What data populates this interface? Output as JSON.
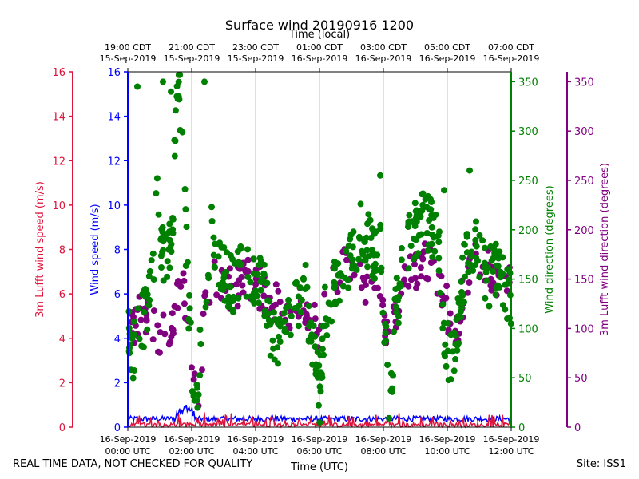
{
  "chart_data": {
    "type": "scatter",
    "title": "Surface wind 20190916 1200",
    "top_axis_label": "Time (local)",
    "bottom_axis_label": "Time (UTC)",
    "footer_left": "REAL TIME DATA, NOT CHECKED FOR QUALITY",
    "footer_right": "Site: ISS1",
    "x_range_hours": [
      0,
      12
    ],
    "bottom_ticks": [
      {
        "h": 0,
        "line1": "16-Sep-2019",
        "line2": "00:00 UTC"
      },
      {
        "h": 2,
        "line1": "16-Sep-2019",
        "line2": "02:00 UTC"
      },
      {
        "h": 4,
        "line1": "16-Sep-2019",
        "line2": "04:00 UTC"
      },
      {
        "h": 6,
        "line1": "16-Sep-2019",
        "line2": "06:00 UTC"
      },
      {
        "h": 8,
        "line1": "16-Sep-2019",
        "line2": "08:00 UTC"
      },
      {
        "h": 10,
        "line1": "16-Sep-2019",
        "line2": "10:00 UTC"
      },
      {
        "h": 12,
        "line1": "16-Sep-2019",
        "line2": "12:00 UTC"
      }
    ],
    "top_ticks": [
      {
        "h": 0,
        "line1": "19:00 CDT",
        "line2": "15-Sep-2019"
      },
      {
        "h": 2,
        "line1": "21:00 CDT",
        "line2": "15-Sep-2019"
      },
      {
        "h": 4,
        "line1": "23:00 CDT",
        "line2": "15-Sep-2019"
      },
      {
        "h": 6,
        "line1": "01:00 CDT",
        "line2": "16-Sep-2019"
      },
      {
        "h": 8,
        "line1": "03:00 CDT",
        "line2": "16-Sep-2019"
      },
      {
        "h": 10,
        "line1": "05:00 CDT",
        "line2": "16-Sep-2019"
      },
      {
        "h": 12,
        "line1": "07:00 CDT",
        "line2": "16-Sep-2019"
      }
    ],
    "axes": {
      "lufft_speed": {
        "label": "3m Lufft wind speed (m/s)",
        "range": [
          0,
          16
        ],
        "ticks": [
          0,
          2,
          4,
          6,
          8,
          10,
          12,
          14,
          16
        ],
        "color": "#dc143c"
      },
      "wind_speed": {
        "label": "Wind speed (m/s)",
        "range": [
          0,
          16
        ],
        "ticks": [
          0,
          2,
          4,
          6,
          8,
          10,
          12,
          14,
          16
        ],
        "color": "#0000ff"
      },
      "wind_dir": {
        "label": "Wind direction (degrees)",
        "range": [
          0,
          360
        ],
        "ticks": [
          0,
          50,
          100,
          150,
          200,
          250,
          300,
          350
        ],
        "color": "#008000"
      },
      "lufft_dir": {
        "label": "3m Lufft wind direction (degrees)",
        "range": [
          0,
          360
        ],
        "ticks": [
          0,
          50,
          100,
          150,
          200,
          250,
          300,
          350
        ],
        "color": "#800080"
      }
    },
    "series": [
      {
        "name": "Wind speed",
        "axis": "wind_speed",
        "kind": "line",
        "color": "#0000ff"
      },
      {
        "name": "3m Lufft wind speed",
        "axis": "lufft_speed",
        "kind": "line",
        "color": "#dc143c"
      },
      {
        "name": "3m Lufft wind direction",
        "axis": "lufft_dir",
        "kind": "scatter",
        "color": "#800080"
      },
      {
        "name": "Wind direction",
        "axis": "wind_dir",
        "kind": "scatter",
        "color": "#008000"
      }
    ],
    "wind_dir_anchors": [
      [
        0.0,
        100
      ],
      [
        0.15,
        75
      ],
      [
        0.35,
        95
      ],
      [
        0.6,
        120
      ],
      [
        0.8,
        170
      ],
      [
        0.95,
        250
      ],
      [
        1.05,
        185
      ],
      [
        1.2,
        160
      ],
      [
        1.4,
        200
      ],
      [
        1.5,
        330
      ],
      [
        1.6,
        340
      ],
      [
        1.7,
        300
      ],
      [
        1.8,
        210
      ],
      [
        1.9,
        120
      ],
      [
        2.0,
        65
      ],
      [
        2.1,
        20
      ],
      [
        2.2,
        55
      ],
      [
        2.3,
        80
      ],
      [
        2.5,
        140
      ],
      [
        2.6,
        210
      ],
      [
        2.75,
        170
      ],
      [
        3.0,
        160
      ],
      [
        3.3,
        140
      ],
      [
        3.6,
        160
      ],
      [
        3.8,
        150
      ],
      [
        4.0,
        150
      ],
      [
        4.3,
        140
      ],
      [
        4.5,
        90
      ],
      [
        4.8,
        85
      ],
      [
        5.0,
        100
      ],
      [
        5.2,
        115
      ],
      [
        5.5,
        130
      ],
      [
        5.6,
        160
      ],
      [
        5.7,
        90
      ],
      [
        5.9,
        70
      ],
      [
        6.0,
        25
      ],
      [
        6.15,
        110
      ],
      [
        6.4,
        135
      ],
      [
        6.7,
        160
      ],
      [
        7.0,
        175
      ],
      [
        7.3,
        200
      ],
      [
        7.6,
        185
      ],
      [
        7.8,
        175
      ],
      [
        7.9,
        200
      ],
      [
        8.0,
        110
      ],
      [
        8.1,
        70
      ],
      [
        8.2,
        30
      ],
      [
        8.4,
        120
      ],
      [
        8.7,
        180
      ],
      [
        9.0,
        200
      ],
      [
        9.3,
        210
      ],
      [
        9.6,
        195
      ],
      [
        9.8,
        160
      ],
      [
        9.9,
        100
      ],
      [
        10.0,
        80
      ],
      [
        10.2,
        60
      ],
      [
        10.4,
        130
      ],
      [
        10.7,
        190
      ],
      [
        11.0,
        175
      ],
      [
        11.3,
        150
      ],
      [
        11.5,
        165
      ],
      [
        11.8,
        145
      ],
      [
        12.0,
        130
      ]
    ],
    "lufft_dir_anchors": [
      [
        0.1,
        95
      ],
      [
        0.4,
        115
      ],
      [
        0.8,
        105
      ],
      [
        1.0,
        90
      ],
      [
        1.3,
        95
      ],
      [
        1.5,
        120
      ],
      [
        1.7,
        155
      ],
      [
        1.9,
        100
      ],
      [
        2.0,
        60
      ],
      [
        2.2,
        20
      ],
      [
        2.4,
        110
      ],
      [
        2.7,
        150
      ],
      [
        3.0,
        145
      ],
      [
        3.3,
        140
      ],
      [
        3.6,
        145
      ],
      [
        3.9,
        150
      ],
      [
        4.2,
        140
      ],
      [
        4.5,
        130
      ],
      [
        4.8,
        115
      ],
      [
        5.0,
        120
      ],
      [
        5.3,
        130
      ],
      [
        5.6,
        110
      ],
      [
        5.9,
        100
      ],
      [
        6.2,
        115
      ],
      [
        6.5,
        150
      ],
      [
        6.8,
        160
      ],
      [
        7.1,
        150
      ],
      [
        7.4,
        140
      ],
      [
        7.7,
        155
      ],
      [
        8.0,
        110
      ],
      [
        8.2,
        90
      ],
      [
        8.5,
        130
      ],
      [
        8.8,
        150
      ],
      [
        9.1,
        160
      ],
      [
        9.4,
        170
      ],
      [
        9.7,
        150
      ],
      [
        10.0,
        120
      ],
      [
        10.2,
        85
      ],
      [
        10.4,
        120
      ],
      [
        10.7,
        160
      ],
      [
        11.0,
        165
      ],
      [
        11.3,
        160
      ],
      [
        11.6,
        145
      ],
      [
        12.0,
        140
      ]
    ],
    "wind_speed_baseline_ms": 0.25,
    "lufft_speed_baseline_ms": 0.2
  }
}
